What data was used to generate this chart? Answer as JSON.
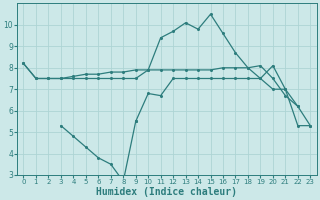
{
  "lineA_x": [
    0,
    1,
    2,
    3,
    4,
    5,
    6,
    7,
    8,
    9,
    10,
    11,
    12,
    13,
    14,
    15,
    16,
    17,
    18,
    19,
    20,
    21,
    22
  ],
  "lineA_y": [
    8.2,
    7.5,
    7.5,
    7.5,
    7.6,
    7.7,
    7.7,
    7.8,
    7.8,
    7.9,
    7.9,
    9.4,
    9.7,
    10.1,
    9.8,
    10.5,
    9.6,
    8.7,
    8.0,
    8.1,
    7.5,
    6.7,
    6.2
  ],
  "lineB_x": [
    0,
    1,
    2,
    3,
    4,
    5,
    6,
    7,
    8,
    9,
    10,
    11,
    12,
    13,
    14,
    15,
    16,
    17,
    18,
    19,
    20,
    21,
    22,
    23
  ],
  "lineB_y": [
    8.2,
    7.5,
    7.5,
    7.5,
    7.5,
    7.5,
    7.5,
    7.5,
    7.5,
    7.5,
    7.9,
    7.9,
    7.9,
    7.9,
    7.9,
    7.9,
    8.0,
    8.0,
    8.0,
    7.5,
    8.1,
    7.0,
    6.2,
    5.3
  ],
  "lineC1_x": [
    3,
    4,
    5,
    6,
    7,
    8,
    9
  ],
  "lineC1_y": [
    5.3,
    4.8,
    4.3,
    3.8,
    3.5,
    2.7,
    5.5
  ],
  "lineC2_x": [
    9,
    10,
    11,
    12,
    13,
    14,
    15,
    16,
    17,
    18,
    19,
    20,
    21,
    22,
    23
  ],
  "lineC2_y": [
    5.5,
    6.8,
    6.7,
    7.5,
    7.5,
    7.5,
    7.5,
    7.5,
    7.5,
    7.5,
    7.5,
    7.0,
    7.0,
    5.3,
    5.3
  ],
  "line_color": "#2d7d7d",
  "bg_color": "#cce8e8",
  "grid_color": "#aed4d4",
  "xlabel": "Humidex (Indice chaleur)",
  "ylim": [
    3,
    11
  ],
  "xlim": [
    -0.5,
    23.5
  ],
  "yticks": [
    3,
    4,
    5,
    6,
    7,
    8,
    9,
    10
  ],
  "xticks": [
    0,
    1,
    2,
    3,
    4,
    5,
    6,
    7,
    8,
    9,
    10,
    11,
    12,
    13,
    14,
    15,
    16,
    17,
    18,
    19,
    20,
    21,
    22,
    23
  ]
}
